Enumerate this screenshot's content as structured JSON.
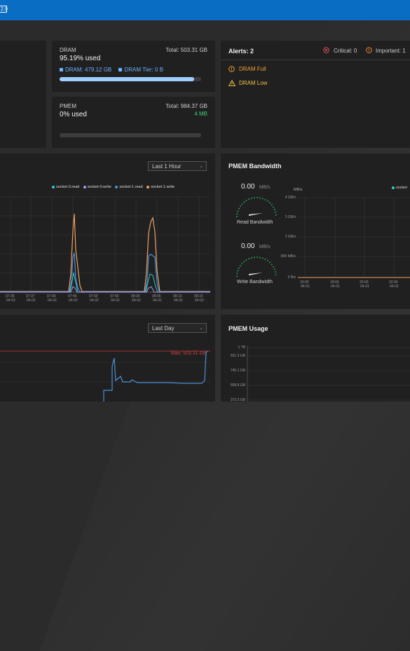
{
  "header": {
    "version_badge": "2.0"
  },
  "dram": {
    "title": "DRAM",
    "total": "Total: 503.31 GB",
    "used_pct": "95.19% used",
    "legend_dram": "DRAM: 479.12 GB",
    "legend_tier": "DRAM Tier: 0 B",
    "fill_fraction": 0.95
  },
  "pmem": {
    "title": "PMEM",
    "total": "Total: 984.37 GB",
    "used_pct": "0% used",
    "used_amount": "4 MB",
    "fill_fraction": 0.0
  },
  "alerts": {
    "title": "Alerts: 2",
    "critical": "Critical: 0",
    "important": "Important: 1",
    "items": [
      {
        "label": "DRAM Full",
        "color": "#f0a030"
      },
      {
        "label": "DRAM Low",
        "color": "#f0c040"
      }
    ]
  },
  "dram_bandwidth": {
    "range_select": "Last 1 Hour",
    "legend": [
      {
        "name": "socket-0.read",
        "color": "#35c8c8"
      },
      {
        "name": "socket-0.write",
        "color": "#a89ae8"
      },
      {
        "name": "socket-1.read",
        "color": "#4a90d8"
      },
      {
        "name": "socket-1.write",
        "color": "#f0a060"
      }
    ],
    "x_ticks": [
      [
        "07:35",
        "04-02"
      ],
      [
        "07:37",
        "04-02"
      ],
      [
        "07:40",
        "04-02"
      ],
      [
        "07:45",
        "04-02"
      ],
      [
        "07:50",
        "04-02"
      ],
      [
        "07:55",
        "04-02"
      ],
      [
        "08:00",
        "04-02"
      ],
      [
        "08:05",
        "04-02"
      ],
      [
        "08:10",
        "04-02"
      ],
      [
        "08:15",
        "04-02"
      ]
    ]
  },
  "pmem_bandwidth": {
    "title": "PMEM Bandwidth",
    "read_value": "0.00",
    "read_unit": "MB/s",
    "read_label": "Read Bandwidth",
    "write_value": "0.00",
    "write_unit": "MB/s",
    "write_label": "Write Bandwidth",
    "y_unit": "MB/s",
    "y_ticks": [
      "4 GB/s",
      "3 GB/s",
      "2 GB/s",
      "800 MB/s",
      "0 B/s"
    ],
    "legend": "socket",
    "x_ticks": [
      [
        "16:00",
        "04-01"
      ],
      [
        "18:00",
        "04-01"
      ],
      [
        "20:00",
        "04-01"
      ],
      [
        "22:00",
        "04-01"
      ]
    ]
  },
  "dram_usage": {
    "range_select": "Last Day",
    "max_label": "Max: 503.31 GB"
  },
  "pmem_usage": {
    "title": "PMEM Usage",
    "y_ticks": [
      "1 TB",
      "931.3 GB",
      "745.1 GB",
      "558.8 GB",
      "372.5 GB"
    ]
  }
}
